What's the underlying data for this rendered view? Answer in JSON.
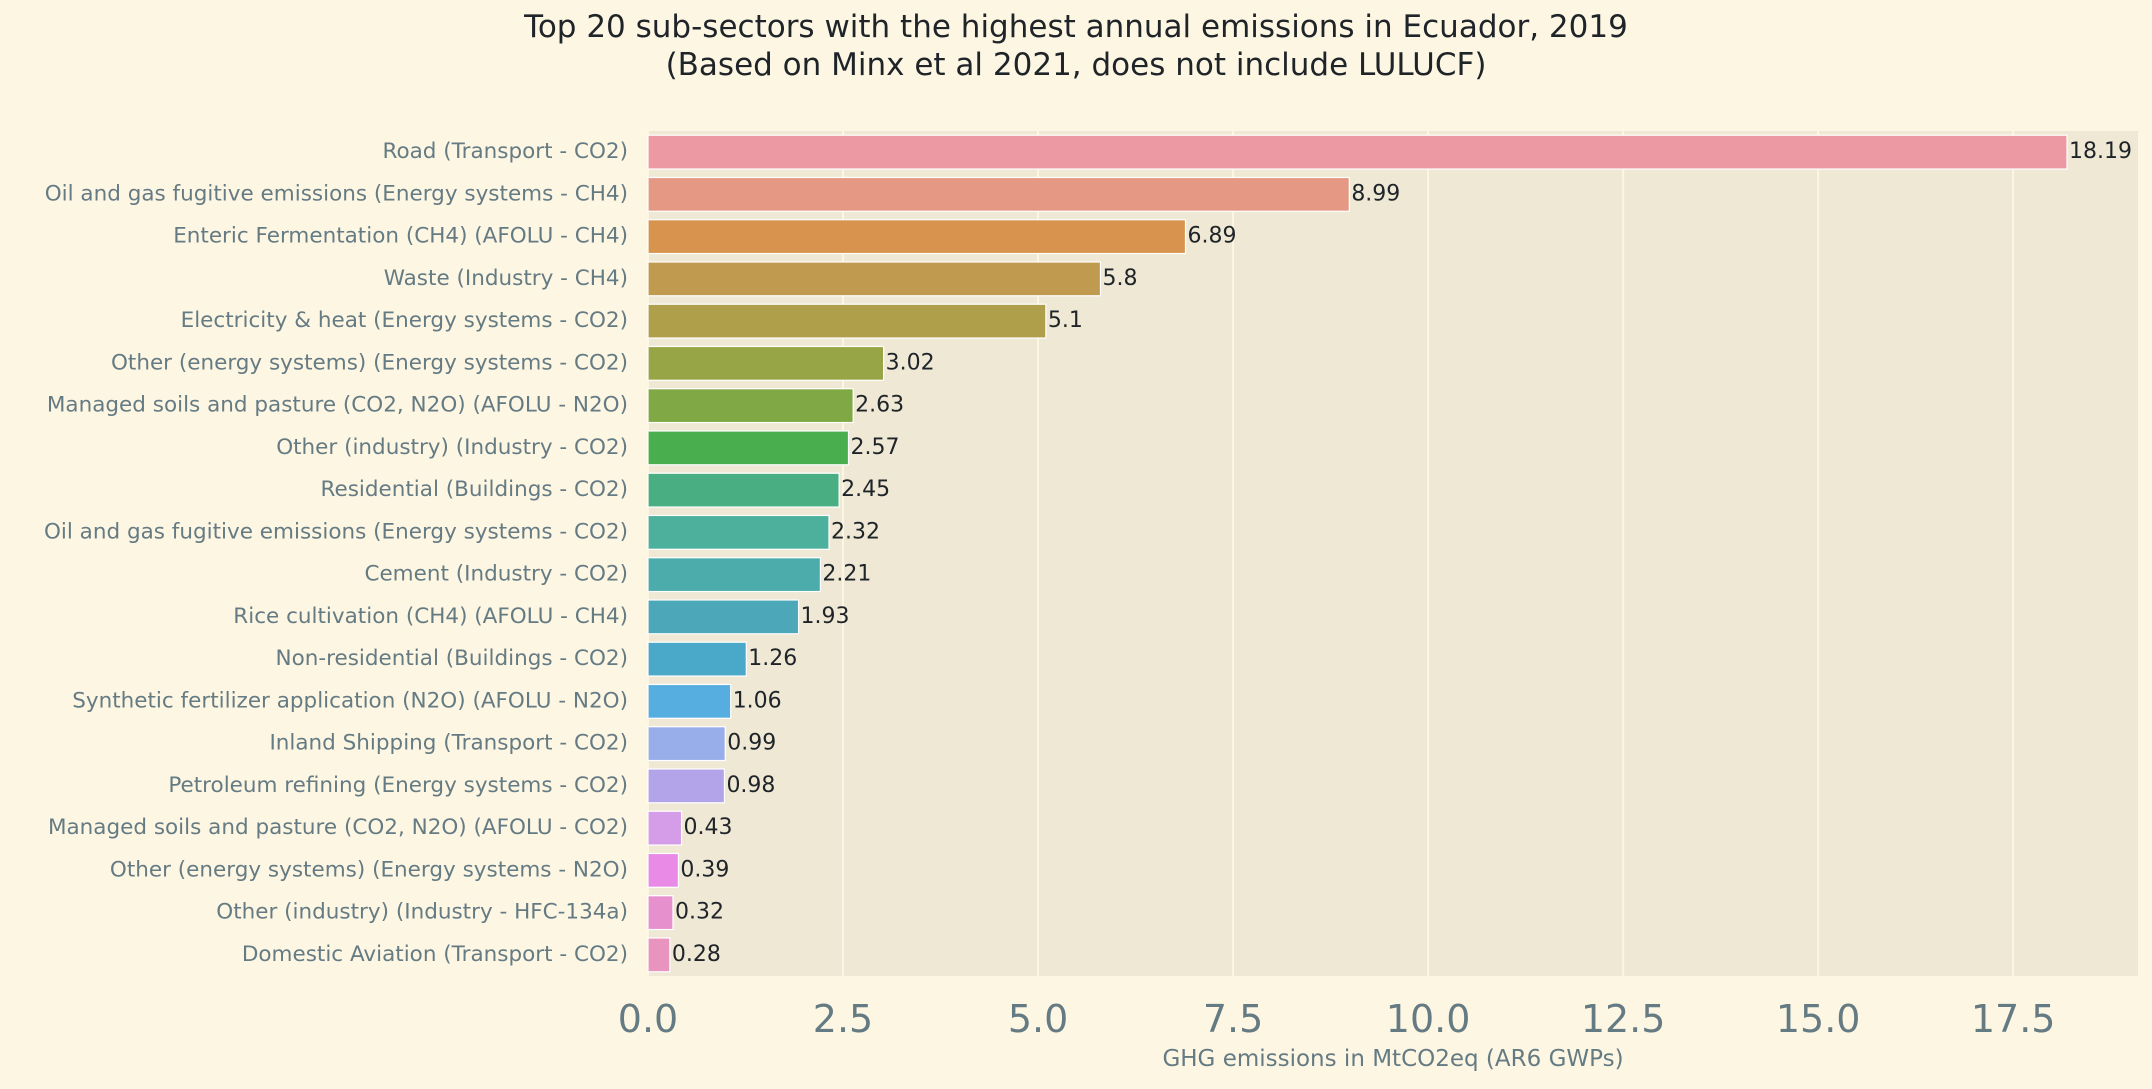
{
  "chart_data": {
    "type": "bar",
    "orientation": "horizontal",
    "title": "Top 20 sub-sectors with the highest annual emissions in Ecuador, 2019",
    "subtitle": "(Based on Minx et al 2021, does not include LULUCF)",
    "xlabel": "GHG emissions in MtCO2eq (AR6 GWPs)",
    "ylabel": "",
    "xlim": [
      0,
      19.1
    ],
    "xticks": [
      "0.0",
      "2.5",
      "5.0",
      "7.5",
      "10.0",
      "12.5",
      "15.0",
      "17.5"
    ],
    "grid": true,
    "categories": [
      "Road (Transport - CO2)",
      "Oil and gas fugitive emissions (Energy systems - CH4)",
      "Enteric Fermentation (CH4) (AFOLU - CH4)",
      "Waste (Industry - CH4)",
      "Electricity & heat (Energy systems - CO2)",
      "Other (energy systems) (Energy systems - CO2)",
      "Managed soils and pasture (CO2, N2O) (AFOLU - N2O)",
      "Other (industry) (Industry - CO2)",
      "Residential (Buildings - CO2)",
      "Oil and gas fugitive emissions (Energy systems - CO2)",
      "Cement (Industry - CO2)",
      "Rice cultivation (CH4) (AFOLU - CH4)",
      "Non-residential (Buildings - CO2)",
      "Synthetic fertilizer application (N2O) (AFOLU - N2O)",
      "Inland Shipping (Transport - CO2)",
      "Petroleum refining (Energy systems - CO2)",
      "Managed soils and pasture (CO2, N2O) (AFOLU - CO2)",
      "Other (energy systems) (Energy systems - N2O)",
      "Other (industry) (Industry - HFC-134a)",
      "Domestic Aviation (Transport - CO2)"
    ],
    "values": [
      18.19,
      8.99,
      6.89,
      5.8,
      5.1,
      3.02,
      2.63,
      2.57,
      2.45,
      2.32,
      2.21,
      1.93,
      1.26,
      1.06,
      0.99,
      0.98,
      0.43,
      0.39,
      0.32,
      0.28
    ],
    "data_labels": [
      "18.19",
      "8.99",
      "6.89",
      "5.8",
      "5.1",
      "3.02",
      "2.63",
      "2.57",
      "2.45",
      "2.32",
      "2.21",
      "1.93",
      "1.26",
      "1.06",
      "0.99",
      "0.98",
      "0.43",
      "0.39",
      "0.32",
      "0.28"
    ],
    "colors": [
      "#ec99a3",
      "#e59883",
      "#d8944f",
      "#c09a4e",
      "#b09f4a",
      "#98a546",
      "#80a844",
      "#49ae4e",
      "#4aae83",
      "#4cb09c",
      "#4cacac",
      "#4ca8b8",
      "#4aa8c8",
      "#56aee0",
      "#98aeea",
      "#b3a4ea",
      "#d59ce8",
      "#e88ae6",
      "#e690ce",
      "#e994be"
    ],
    "style": {
      "background": "#fdf6e3",
      "plot_background": "#eee8d5",
      "grid_color": "#fdf6e3",
      "tick_label_color": "#657b83",
      "text_color": "#1f2429"
    }
  }
}
